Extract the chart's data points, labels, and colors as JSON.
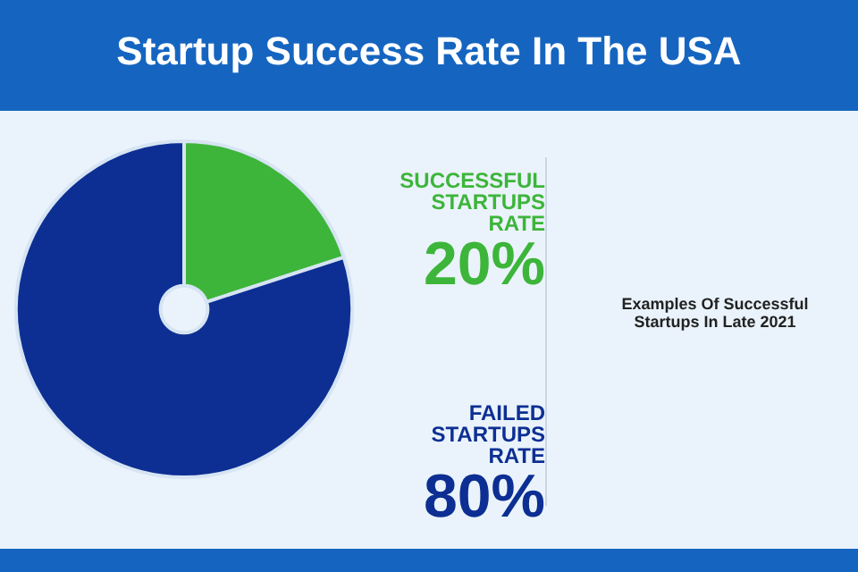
{
  "chart_data": {
    "type": "donut",
    "title": "Startup Success Rate In The USA",
    "categories": [
      "SUCCESSFUL STARTUPS RATE",
      "FAILED STARTUPS RATE"
    ],
    "values": [
      20,
      80
    ],
    "colors": [
      "#3db53a",
      "#0d2f93"
    ],
    "value_labels": [
      "20%",
      "80%"
    ],
    "legend": false,
    "annotations": [
      "Examples Of Successful Startups In Late 2021"
    ]
  }
}
